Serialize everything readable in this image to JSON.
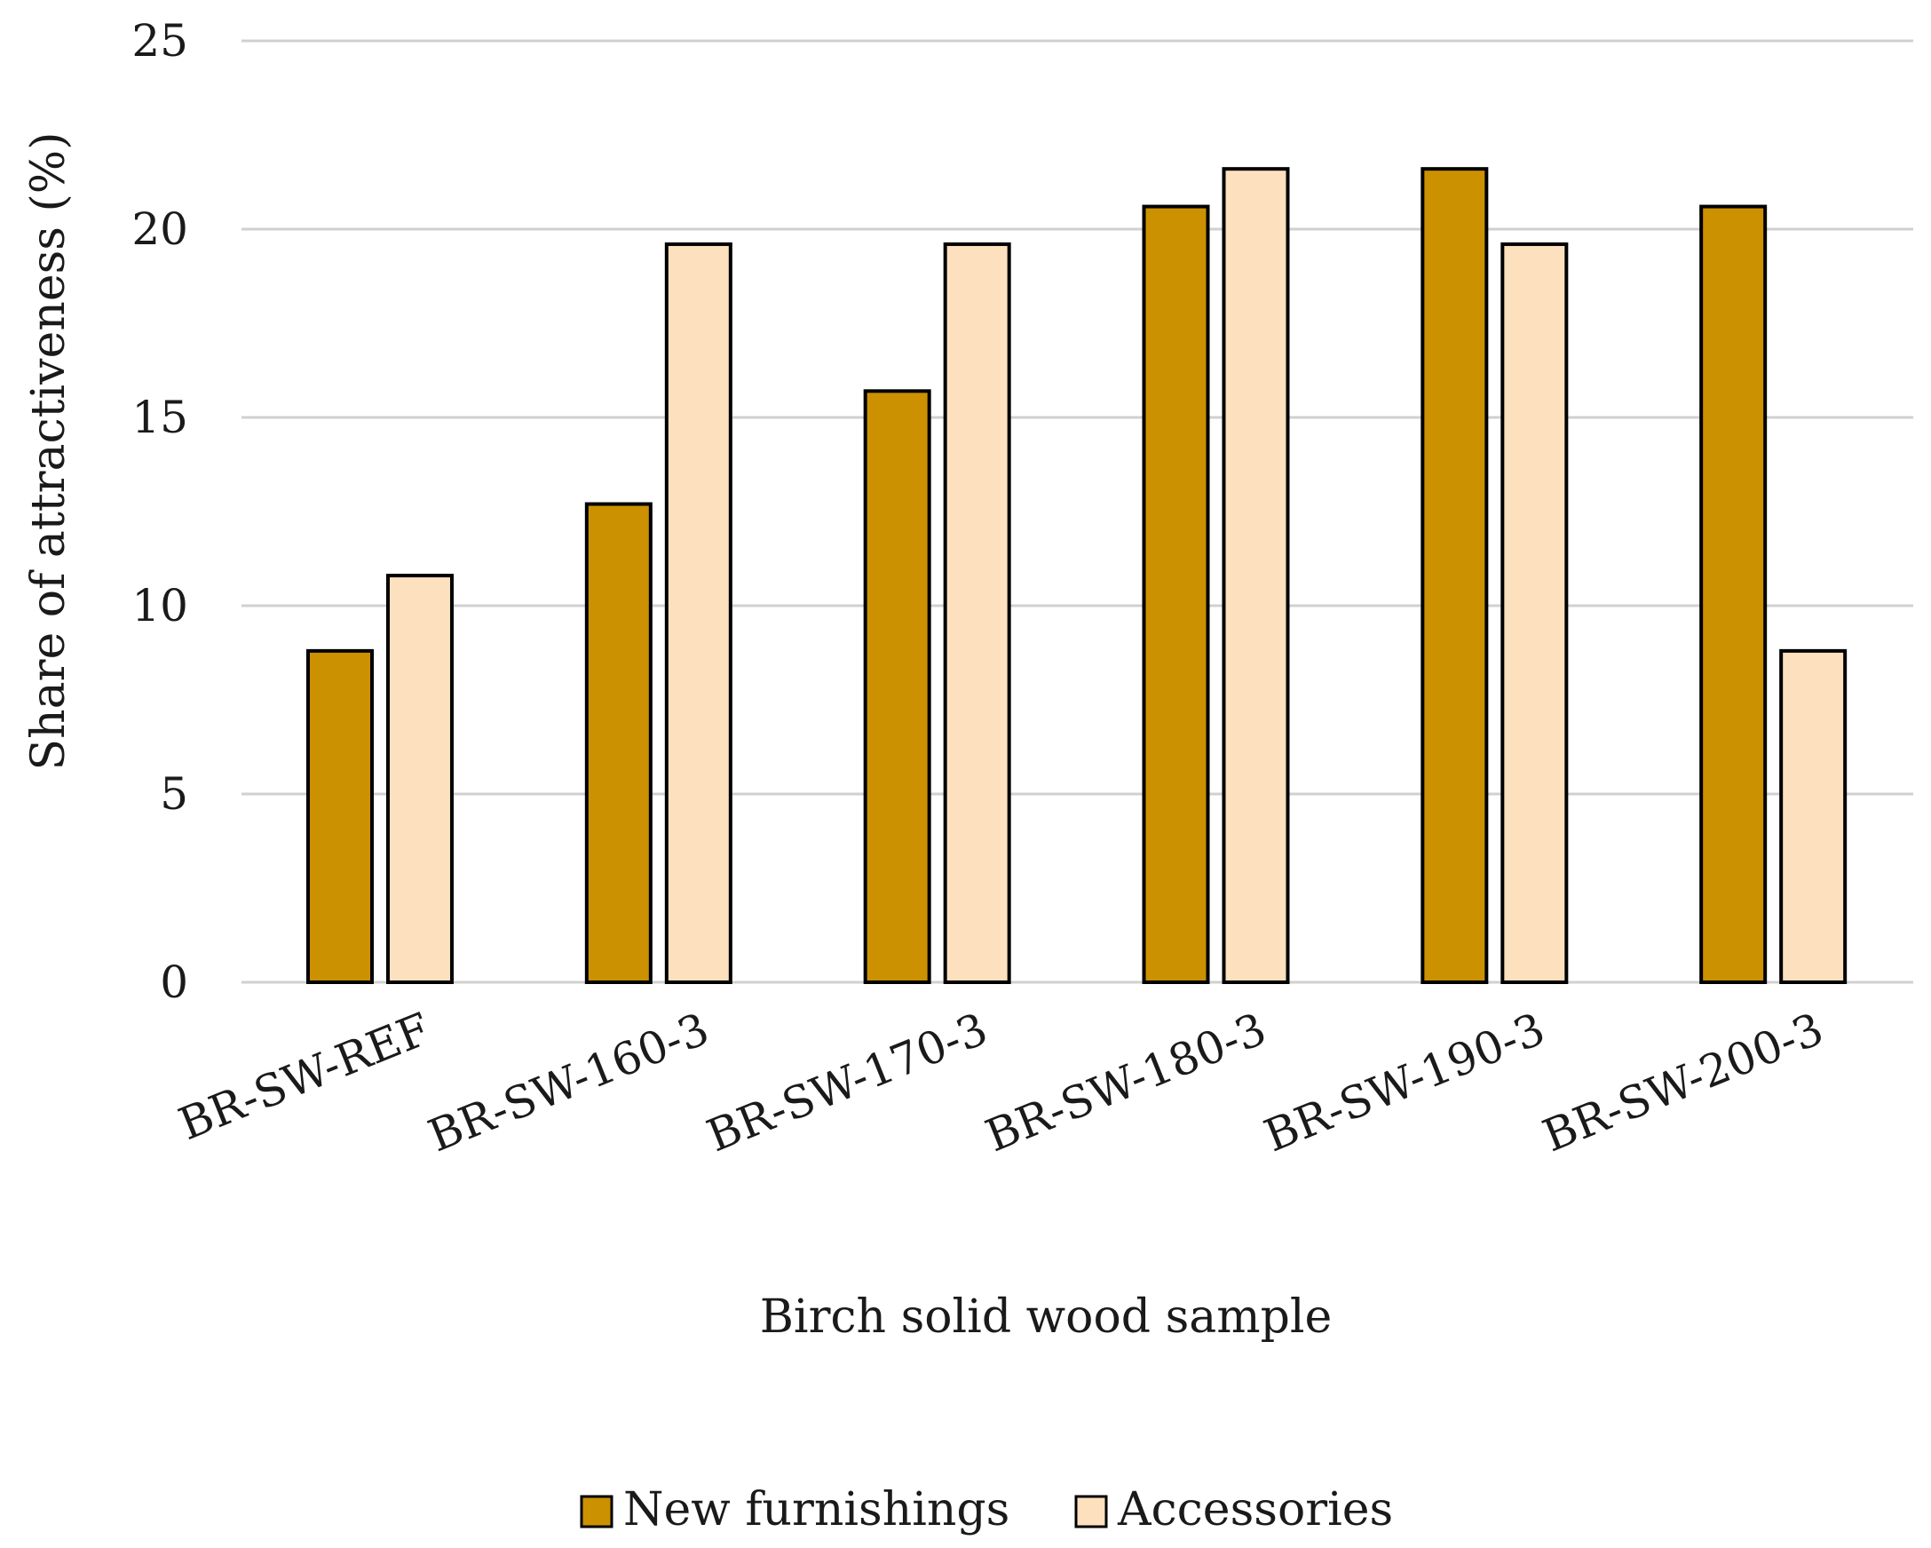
{
  "chart_data": {
    "type": "bar",
    "title": "",
    "xlabel": "Birch solid wood sample",
    "ylabel": "Share of attractiveness (%)",
    "ylim": [
      0,
      25
    ],
    "yticks": [
      0,
      5,
      10,
      15,
      20,
      25
    ],
    "grid": true,
    "legend_position": "bottom",
    "categories": [
      "BR-SW-REF",
      "BR-SW-160-3",
      "BR-SW-170-3",
      "BR-SW-180-3",
      "BR-SW-190-3",
      "BR-SW-200-3"
    ],
    "series": [
      {
        "name": "New furnishings",
        "color": "#CC9100",
        "values": [
          8.8,
          12.7,
          15.7,
          20.6,
          21.6,
          20.6
        ]
      },
      {
        "name": "Accessories",
        "color": "#FDE0BE",
        "values": [
          10.8,
          19.6,
          19.6,
          21.6,
          19.6,
          8.8
        ]
      }
    ]
  }
}
